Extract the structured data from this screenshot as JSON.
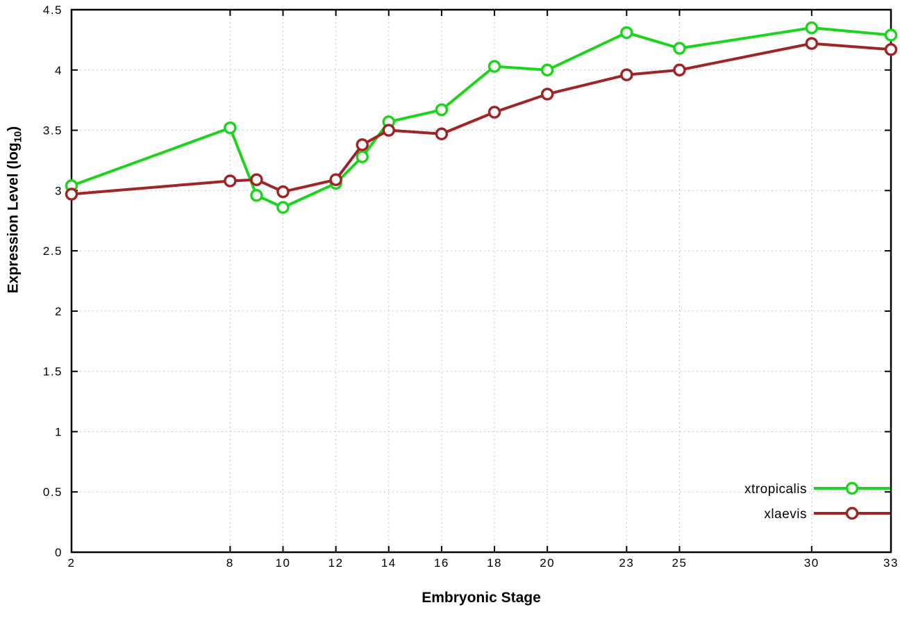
{
  "chart_data": {
    "type": "line",
    "title": "",
    "xlabel": "Embryonic Stage",
    "ylabel": "Expression Level (log10)",
    "ylabel_parts": {
      "prefix": "Expression Level (log",
      "sub": "10",
      "suffix": ")"
    },
    "xlim": [
      2,
      33
    ],
    "ylim": [
      0,
      4.5
    ],
    "grid": true,
    "legend_position": "bottom-right",
    "x_ticks": [
      2,
      8,
      10,
      12,
      14,
      16,
      18,
      20,
      23,
      25,
      30,
      33
    ],
    "x_tick_labels": [
      "2",
      "8",
      "10",
      "12",
      "14",
      "16",
      "18",
      "20",
      "23",
      "25",
      "30",
      "33"
    ],
    "y_ticks": [
      0,
      0.5,
      1,
      1.5,
      2,
      2.5,
      3,
      3.5,
      4,
      4.5
    ],
    "y_tick_labels": [
      "0",
      "0.5",
      "1",
      "1.5",
      "2",
      "2.5",
      "3",
      "3.5",
      "4",
      "4.5"
    ],
    "x": [
      2,
      8,
      9,
      10,
      12,
      13,
      14,
      16,
      18,
      20,
      23,
      25,
      30,
      33
    ],
    "series": [
      {
        "name": "xtropicalis",
        "color": "#1dd41d",
        "values": [
          3.04,
          3.52,
          2.96,
          2.86,
          3.06,
          3.28,
          3.57,
          3.67,
          4.03,
          4.0,
          4.31,
          4.18,
          4.35,
          4.29
        ]
      },
      {
        "name": "xlaevis",
        "color": "#a02424",
        "values": [
          2.97,
          3.08,
          3.09,
          2.99,
          3.09,
          3.38,
          3.5,
          3.47,
          3.65,
          3.8,
          3.96,
          4.0,
          4.22,
          4.17
        ]
      }
    ]
  },
  "colors": {
    "background": "#ffffff",
    "axis": "#000000",
    "grid": "#c4c4c4",
    "tick_text": "#000000"
  }
}
